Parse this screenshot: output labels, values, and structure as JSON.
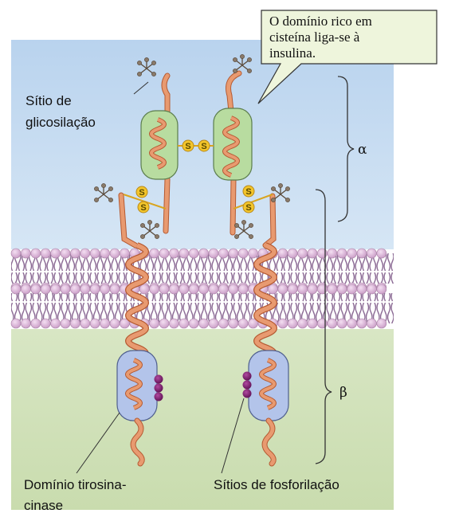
{
  "labels": {
    "glycosylation_line1": "Sítio de",
    "glycosylation_line2": "glicosilação",
    "callout_line1": "O domínio rico em",
    "callout_line2": "cisteína liga-se à",
    "callout_line3": "insulina.",
    "alpha": "α",
    "beta": "β",
    "kinase_line1": "Domínio tirosina-",
    "kinase_line2": "cinase",
    "phospho": "Sítios de fosforilação",
    "disulfide": "S"
  },
  "colors": {
    "extracellular": "#c9ddf0",
    "intracellular": "#d3e2bd",
    "lipid_head": "#d9b3d6",
    "lipid_tail": "#8c6b95",
    "chain": "#e89a70",
    "chain_dark": "#b55a32",
    "cys_domain": "#b8dca0",
    "kinase_domain": "#b3c4ea",
    "disulfide": "#f3c52b",
    "phospho_site": "#7a1a6b"
  }
}
